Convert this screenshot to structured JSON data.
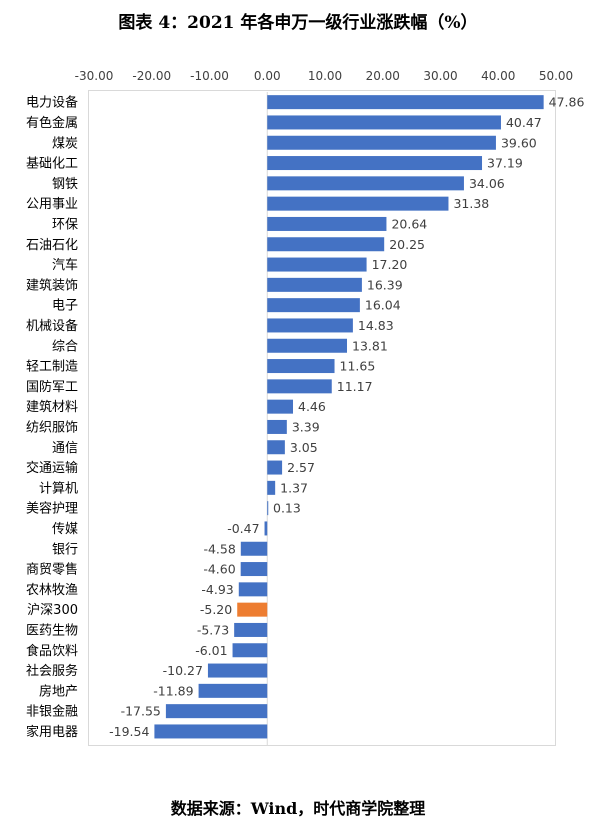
{
  "title": "图表 4：2021 年各申万一级行业涨跌幅（%）",
  "source": "数据来源：Wind，时代商学院整理",
  "colors": {
    "bar": "#4472C4",
    "highlight": "#ED7D31",
    "axis": "#d9d9d9",
    "text": "#404040"
  },
  "chart_data": {
    "type": "bar",
    "orientation": "horizontal",
    "title": "图表 4：2021 年各申万一级行业涨跌幅（%）",
    "xlim": [
      -30,
      50
    ],
    "xticks": [
      "-30.00",
      "-20.00",
      "-10.00",
      "0.00",
      "10.00",
      "20.00",
      "30.00",
      "40.00",
      "50.00"
    ],
    "categories": [
      "电力设备",
      "有色金属",
      "煤炭",
      "基础化工",
      "钢铁",
      "公用事业",
      "环保",
      "石油石化",
      "汽车",
      "建筑装饰",
      "电子",
      "机械设备",
      "综合",
      "轻工制造",
      "国防军工",
      "建筑材料",
      "纺织服饰",
      "通信",
      "交通运输",
      "计算机",
      "美容护理",
      "传媒",
      "银行",
      "商贸零售",
      "农林牧渔",
      "沪深300",
      "医药生物",
      "食品饮料",
      "社会服务",
      "房地产",
      "非银金融",
      "家用电器"
    ],
    "values": [
      47.86,
      40.47,
      39.6,
      37.19,
      34.06,
      31.38,
      20.64,
      20.25,
      17.2,
      16.39,
      16.04,
      14.83,
      13.81,
      11.65,
      11.17,
      4.46,
      3.39,
      3.05,
      2.57,
      1.37,
      0.13,
      -0.47,
      -4.58,
      -4.6,
      -4.93,
      -5.2,
      -5.73,
      -6.01,
      -10.27,
      -11.89,
      -17.55,
      -19.54
    ],
    "value_labels": [
      "47.86",
      "40.47",
      "39.60",
      "37.19",
      "34.06",
      "31.38",
      "20.64",
      "20.25",
      "17.20",
      "16.39",
      "16.04",
      "14.83",
      "13.81",
      "11.65",
      "11.17",
      "4.46",
      "3.39",
      "3.05",
      "2.57",
      "1.37",
      "0.13",
      "-0.47",
      "-4.58",
      "-4.60",
      "-4.93",
      "-5.20",
      "-5.73",
      "-6.01",
      "-10.27",
      "-11.89",
      "-17.55",
      "-19.54"
    ],
    "highlight_category": "沪深300",
    "grid": false,
    "legend": "none"
  }
}
